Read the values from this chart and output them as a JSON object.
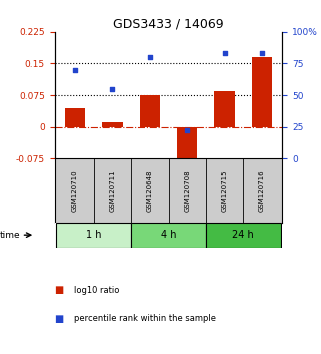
{
  "title": "GDS3433 / 14069",
  "samples": [
    "GSM120710",
    "GSM120711",
    "GSM120648",
    "GSM120708",
    "GSM120715",
    "GSM120716"
  ],
  "log10_ratio": [
    0.045,
    0.012,
    0.075,
    -0.1,
    0.085,
    0.165
  ],
  "percentile_rank": [
    70,
    55,
    80,
    22,
    83,
    83
  ],
  "time_groups": [
    {
      "label": "1 h",
      "start": 0,
      "end": 2,
      "color": "#c8f0c8"
    },
    {
      "label": "4 h",
      "start": 2,
      "end": 4,
      "color": "#78d878"
    },
    {
      "label": "24 h",
      "start": 4,
      "end": 6,
      "color": "#44bb44"
    }
  ],
  "left_ylim": [
    -0.075,
    0.225
  ],
  "left_yticks": [
    -0.075,
    0,
    0.075,
    0.15,
    0.225
  ],
  "right_ylim": [
    0,
    100
  ],
  "right_yticks": [
    0,
    25,
    50,
    75,
    100
  ],
  "hlines": [
    0.075,
    0.15
  ],
  "bar_color": "#cc2200",
  "dot_color": "#2244cc",
  "zero_line_color": "#cc2200",
  "bar_width": 0.55,
  "bg_color": "#ffffff",
  "plot_bg": "#ffffff",
  "title_fontsize": 9,
  "tick_fontsize": 6.5,
  "sample_fontsize": 5.0,
  "time_fontsize": 7,
  "legend_fontsize": 6
}
